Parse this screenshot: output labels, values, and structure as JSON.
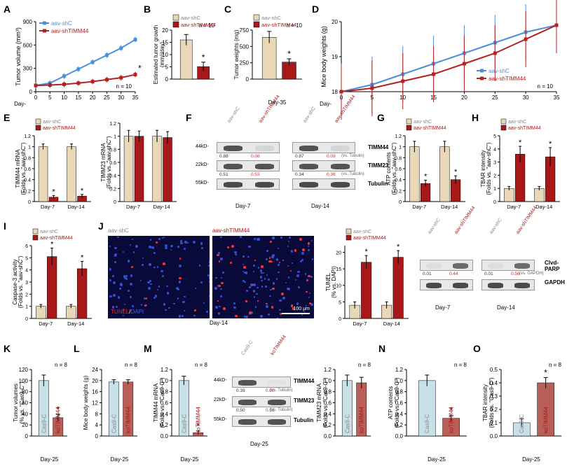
{
  "colors": {
    "shC_line": "#4a90d9",
    "shTIMM44_line": "#b52020",
    "shC_bar": "#e8d8b8",
    "shTIMM44_bar": "#a81818",
    "cas9_bar": "#c8e0e8",
    "koTIMM44_bar": "#b86058"
  },
  "A": {
    "ylabel": "Tumor volume (mm³)",
    "ymax": 900,
    "ytick": 300,
    "x": [
      0,
      5,
      10,
      15,
      20,
      25,
      30,
      35
    ],
    "shC": [
      80,
      110,
      200,
      290,
      380,
      470,
      560,
      670
    ],
    "shTI": [
      80,
      85,
      95,
      110,
      130,
      155,
      180,
      220
    ],
    "n": "n = 10",
    "legend": [
      "aav-shC",
      "aav-shTIMM44"
    ]
  },
  "B": {
    "ylabel": "Estimated tumor growth\n(mm³/day)",
    "ymax": 20,
    "ytick": 5,
    "vals": [
      16,
      5.1
    ],
    "err": [
      2.2,
      1.8
    ],
    "legend": [
      "aav-shC",
      "aav-shTIMM44"
    ],
    "n": "n = 10"
  },
  "C": {
    "ylabel": "Tumor weights (mg)",
    "ymax": 750,
    "ytick": 250,
    "vals": [
      640,
      260
    ],
    "err": [
      90,
      50
    ],
    "legend": [
      "aav-shC",
      "aav-shTIMM44"
    ],
    "n": "n = 10",
    "xlab": "Day-35"
  },
  "D": {
    "ylabel": "Mice body weights (g)",
    "ymin": 18,
    "ymax": 20,
    "ytick": 1,
    "x": [
      0,
      5,
      10,
      15,
      20,
      25,
      30,
      35
    ],
    "shC": [
      18,
      18.2,
      18.5,
      18.8,
      19.1,
      19.4,
      19.7,
      19.9
    ],
    "shTI": [
      18,
      18.1,
      18.3,
      18.5,
      18.8,
      19.1,
      19.5,
      19.9
    ],
    "legend": [
      "aav-shC",
      "aav-shTIMM44"
    ],
    "n": "n = 10"
  },
  "E1": {
    "ylabel": "TIMM44 mRNA\n(Folds vs. \"aav-shC\")",
    "ymax": 1.2,
    "ytick": 0.2,
    "groups": [
      "Day-7",
      "Day-14"
    ],
    "vals": [
      [
        1,
        0.08
      ],
      [
        1,
        0.1
      ]
    ],
    "err": [
      [
        0.05,
        0.03
      ],
      [
        0.05,
        0.03
      ]
    ]
  },
  "E2": {
    "ylabel": "TIMM23 mRNA\n(Folds vs. \"aav-shC\")",
    "ymax": 1.2,
    "ytick": 0.2,
    "groups": [
      "Day-7",
      "Day-14"
    ],
    "vals": [
      [
        1,
        1.0
      ],
      [
        1,
        0.98
      ]
    ],
    "err": [
      [
        0.09,
        0.08
      ],
      [
        0.09,
        0.09
      ]
    ]
  },
  "F": {
    "kd": [
      "44kD-",
      "22kD-",
      "55kD-"
    ],
    "rows": [
      "TIMM44",
      "TIMM23",
      "Tubulin"
    ],
    "ratios1": [
      "0.88",
      "0.08",
      "0.51",
      "0.53"
    ],
    "ratios2": [
      "0.87",
      "0.09",
      "0.34",
      "0.36"
    ],
    "vs": "(vs. Tubulin)",
    "cols": [
      "aav-shC",
      "aav-shTIMM44",
      "aav-shC",
      "aav-shTIMM44"
    ],
    "days": [
      "Day-7",
      "Day-14"
    ]
  },
  "G": {
    "ylabel": "ATP contents\n(Folds vs. \"aav-shC\")",
    "ymax": 1.2,
    "ytick": 0.2,
    "groups": [
      "Day-7",
      "Day-14"
    ],
    "vals": [
      [
        1,
        0.33
      ],
      [
        1,
        0.4
      ]
    ],
    "err": [
      [
        0.1,
        0.06
      ],
      [
        0.1,
        0.07
      ]
    ]
  },
  "H": {
    "ylabel": "TBAR intensity\n(Folds vs. \"aav-shC\")",
    "ymax": 5,
    "ytick": 1,
    "groups": [
      "Day-7",
      "Day-14"
    ],
    "vals": [
      [
        1,
        3.6
      ],
      [
        1,
        3.4
      ]
    ],
    "err": [
      [
        0.15,
        0.6
      ],
      [
        0.15,
        0.7
      ]
    ]
  },
  "I": {
    "ylabel": "Caspase-3 activity\n(Folds vs. \"aav-shC\")",
    "ymax": 6,
    "ytick": 1,
    "groups": [
      "Day-7",
      "Day-14"
    ],
    "vals": [
      [
        1,
        5.1
      ],
      [
        1,
        4.1
      ]
    ],
    "err": [
      [
        0.15,
        0.7
      ],
      [
        0.15,
        0.6
      ]
    ]
  },
  "J": {
    "titles": [
      "aav-shC",
      "aav-shTIMM44"
    ],
    "overlay": "TUNEL/DAPI",
    "day": "Day-14",
    "scale": "100 μm",
    "bar_ylabel": "TUNEL\n(% vs. DAPI)",
    "bar_ymax": 22,
    "bar_ytick": 5,
    "groups": [
      "Day-7",
      "Day-14"
    ],
    "vals": [
      [
        4,
        17
      ],
      [
        4,
        18.5
      ]
    ],
    "err": [
      [
        1,
        2
      ],
      [
        1,
        2
      ]
    ]
  },
  "Jwb": {
    "rows": [
      "Clvd-\nPARP",
      "GAPDH"
    ],
    "cols": [
      "aav-shC",
      "aav-shTIMM44",
      "aav-shC",
      "aav-shTIMM44"
    ],
    "days": [
      "Day-7",
      "Day-14"
    ],
    "ratios": [
      "0.01",
      "0.44",
      "0.01",
      "0.56"
    ],
    "vs": "(vs. GAPDH)"
  },
  "K": {
    "ylabel": "Tumor volumes\n(% vs. \"Cas9-C\")",
    "ymax": 120,
    "ytick": 20,
    "vals": [
      100,
      33
    ],
    "err": [
      10,
      6
    ],
    "cats": [
      "Cas9-C",
      "koTIMM44"
    ],
    "n": "n = 8",
    "day": "Day-25"
  },
  "L": {
    "ylabel": "Mice body weights (g)",
    "ymax": 24,
    "ytick": 4,
    "vals": [
      19.5,
      19.5
    ],
    "err": [
      0.8,
      0.8
    ],
    "cats": [
      "Cas9-C",
      "koTIMM44"
    ],
    "n": "n = 8",
    "day": "Day-25"
  },
  "M1": {
    "ylabel": "TIMM44 mRNA\n(Folds vs. \"Cas9-C\")",
    "ymax": 1.2,
    "ytick": 0.2,
    "vals": [
      1,
      0.06
    ],
    "err": [
      0.08,
      0.03
    ],
    "cats": [
      "Cas9-C",
      "koTIMM44"
    ],
    "n": "n = 8",
    "day": "Day-25"
  },
  "Mwb": {
    "kd": [
      "44kD-",
      "22kD-",
      "55kD-"
    ],
    "rows": [
      "TIMM44",
      "TIMM23",
      "Tubulin"
    ],
    "ratios": [
      "0.39",
      "0.00",
      "0.50",
      "0.51"
    ],
    "vs": "(vs. Tubulin)",
    "cols": [
      "Cas9-C",
      "koTIMM44"
    ],
    "day": "Day-25"
  },
  "M2": {
    "ylabel": "TIMM23 mRNA\n(Folds vs. \"Cas9-C\")",
    "ymax": 1.2,
    "ytick": 0.2,
    "vals": [
      1,
      0.96
    ],
    "err": [
      0.1,
      0.1
    ],
    "cats": [
      "Cas9-C",
      "koTIMM44"
    ],
    "n": "n = 8"
  },
  "N": {
    "ylabel": "ATP contents\n(Folds vs. \"Cas9-C\")",
    "ymax": 1.2,
    "ytick": 0.2,
    "vals": [
      1,
      0.32
    ],
    "err": [
      0.1,
      0.05
    ],
    "cats": [
      "Cas9-C",
      "koTIMM44"
    ],
    "n": "n = 8",
    "day": "Day-25"
  },
  "O": {
    "ylabel": "TBAR intensity\n(Folds vs. \"Cas9-C\")",
    "ymax": 0.5,
    "ytick": 0.1,
    "vals": [
      0.1,
      0.4
    ],
    "err": [
      0.03,
      0.04
    ],
    "cats": [
      "Cas9-C",
      "koTIMM44"
    ],
    "n": "n = 8",
    "day": "Day-25"
  }
}
